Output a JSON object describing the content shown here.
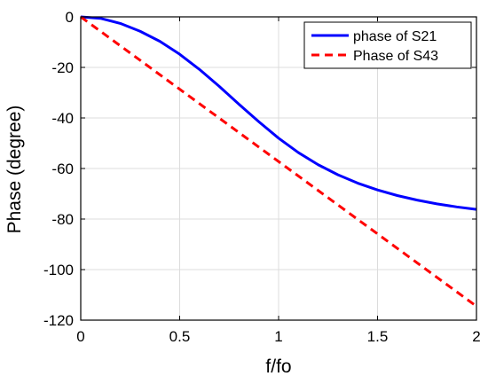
{
  "chart_data": {
    "type": "line",
    "title": "",
    "xlabel": "f/fo",
    "ylabel": "Phase (degree)",
    "xlim": [
      0,
      2
    ],
    "ylim": [
      -120,
      0
    ],
    "xticks": [
      0,
      0.5,
      1,
      1.5,
      2
    ],
    "xtick_labels": [
      "0",
      "0.5",
      "1",
      "1.5",
      "2"
    ],
    "yticks": [
      0,
      -20,
      -40,
      -60,
      -80,
      -100,
      -120
    ],
    "ytick_labels": [
      "0",
      "-20",
      "-40",
      "-60",
      "-80",
      "-100",
      "-120"
    ],
    "grid": true,
    "legend_position": "top-right",
    "series": [
      {
        "name": "phase of S21",
        "color": "#0000ff",
        "line_style": "solid",
        "x": [
          0,
          0.1,
          0.2,
          0.3,
          0.4,
          0.5,
          0.6,
          0.7,
          0.8,
          0.9,
          1.0,
          1.1,
          1.2,
          1.3,
          1.4,
          1.5,
          1.6,
          1.7,
          1.8,
          1.9,
          2.0
        ],
        "y": [
          0,
          -0.6,
          -2.6,
          -5.7,
          -9.7,
          -14.8,
          -20.8,
          -27.5,
          -34.6,
          -41.5,
          -48.0,
          -53.7,
          -58.5,
          -62.5,
          -65.8,
          -68.5,
          -70.7,
          -72.5,
          -74.0,
          -75.2,
          -76.2
        ]
      },
      {
        "name": "Phase of S43",
        "color": "#ff0000",
        "line_style": "dashed",
        "x": [
          0,
          2
        ],
        "y": [
          0,
          -114.5
        ]
      }
    ]
  }
}
